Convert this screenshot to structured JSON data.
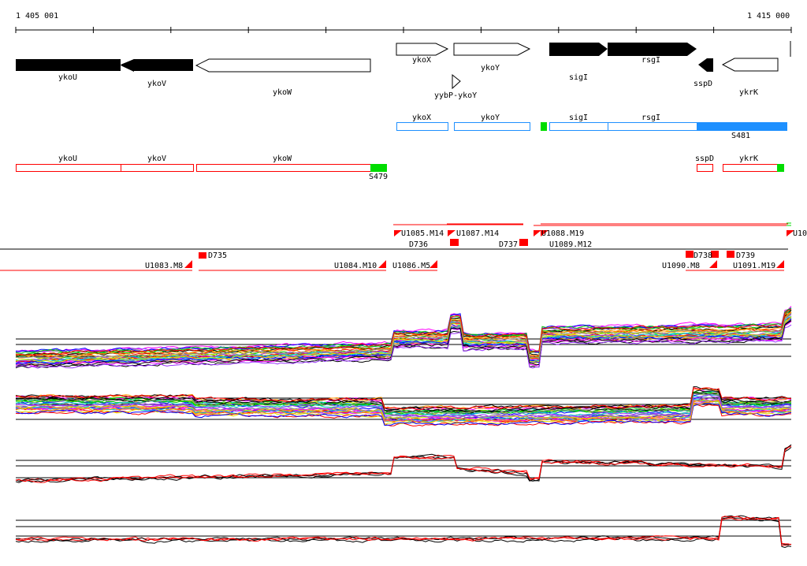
{
  "ruler": {
    "start_label": "1 405 001",
    "end_label": "1 415 000"
  },
  "genes": [
    {
      "name": "ykoU",
      "strand": "-",
      "style": "filled"
    },
    {
      "name": "ykoV",
      "strand": "-",
      "style": "filled"
    },
    {
      "name": "ykoW",
      "strand": "-",
      "style": "open"
    },
    {
      "name": "ykoX",
      "strand": "+",
      "style": "open"
    },
    {
      "name": "ykoY",
      "strand": "+",
      "style": "open"
    },
    {
      "name": "yybP-ykoY",
      "strand": "+",
      "style": "open"
    },
    {
      "name": "sigI",
      "strand": "+",
      "style": "filled"
    },
    {
      "name": "rsgI",
      "strand": "+",
      "style": "filled"
    },
    {
      "name": "sspD",
      "strand": "-",
      "style": "filled"
    },
    {
      "name": "ykrK",
      "strand": "-",
      "style": "open"
    }
  ],
  "forward_operon": {
    "genes": [
      "ykoX",
      "ykoY",
      "sigI",
      "rsgI"
    ],
    "label": "S481",
    "color": "#1e90ff"
  },
  "reverse_operon": {
    "genes": [
      "ykoU",
      "ykoV",
      "ykoW",
      "sspD",
      "ykrK"
    ],
    "label": "S479",
    "color": "#ff0000"
  },
  "segments": {
    "upper": [
      "U1085.M14",
      "U1087.M14",
      "U1088.M19",
      "U1089.M12",
      "U10"
    ],
    "lower": [
      "U1083.M8",
      "U1084.M10",
      "U1086.M5",
      "U1090.M8",
      "U1091.M19"
    ],
    "downshifts": [
      "D735",
      "D736",
      "D737",
      "D738",
      "D739"
    ]
  },
  "colors": {
    "accent_red": "#ff0000",
    "accent_green": "#00dd00",
    "accent_blue": "#1e90ff"
  },
  "signal_series_colors": [
    "#ff00ff",
    "#00cc00",
    "#00cccc",
    "#0000ff",
    "#ff9900",
    "#dddd00",
    "#ff0000",
    "#000000",
    "#888888",
    "#9933ff"
  ]
}
